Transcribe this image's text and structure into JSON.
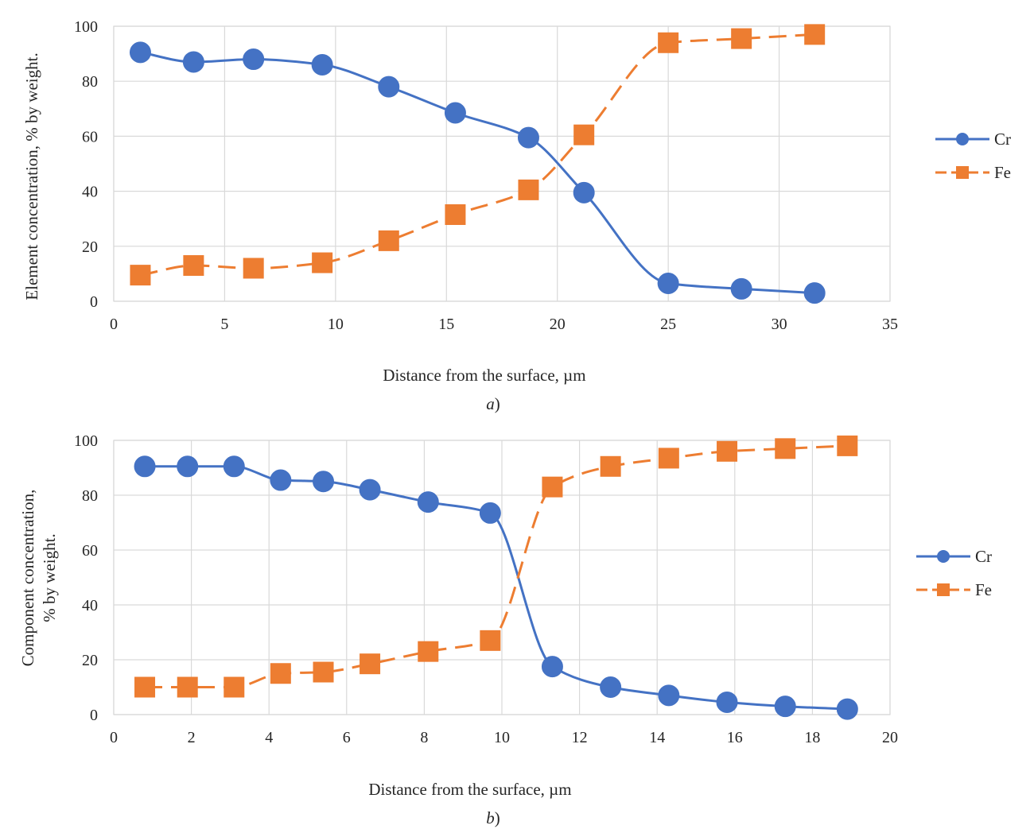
{
  "chart_data": [
    {
      "type": "line",
      "xlabel": "Distance from the surface, µm",
      "ylabel": "Element concentration, % by weight.",
      "caption_letter": "a",
      "caption_suffix": ")",
      "xlim": [
        0,
        35
      ],
      "ylim": [
        0,
        100
      ],
      "xticks": [
        0,
        5,
        10,
        15,
        20,
        25,
        30,
        35
      ],
      "yticks": [
        0,
        20,
        40,
        60,
        80,
        100
      ],
      "grid": true,
      "legend_position": "right",
      "series": [
        {
          "name": "Cr",
          "color": "#4472c4",
          "line_style": "solid",
          "marker": "circle",
          "x": [
            1.2,
            3.6,
            6.3,
            9.4,
            12.4,
            15.4,
            18.7,
            21.2,
            25.0,
            28.3,
            31.6
          ],
          "y": [
            90.5,
            87,
            88,
            86,
            78,
            68.5,
            59.5,
            39.5,
            6.5,
            4.5,
            3
          ]
        },
        {
          "name": "Fe",
          "color": "#ed7d31",
          "line_style": "dashed",
          "marker": "square",
          "x": [
            1.2,
            3.6,
            6.3,
            9.4,
            12.4,
            15.4,
            18.7,
            21.2,
            25.0,
            28.3,
            31.6
          ],
          "y": [
            9.5,
            13,
            12,
            14,
            22,
            31.5,
            40.5,
            60.5,
            94,
            95.5,
            97
          ]
        }
      ]
    },
    {
      "type": "line",
      "xlabel": "Distance from the surface, µm",
      "ylabel_lines": [
        "Component concentration,",
        "% by weight."
      ],
      "caption_letter": "b",
      "caption_suffix": ")",
      "xlim": [
        0,
        20
      ],
      "ylim": [
        0,
        100
      ],
      "xticks": [
        0,
        2,
        4,
        6,
        8,
        10,
        12,
        14,
        16,
        18,
        20
      ],
      "yticks": [
        0,
        20,
        40,
        60,
        80,
        100
      ],
      "grid": true,
      "legend_position": "right",
      "series": [
        {
          "name": "Cr",
          "color": "#4472c4",
          "line_style": "solid",
          "marker": "circle",
          "x": [
            0.8,
            1.9,
            3.1,
            4.3,
            5.4,
            6.6,
            8.1,
            9.7,
            11.3,
            12.8,
            14.3,
            15.8,
            17.3,
            18.9
          ],
          "y": [
            90.5,
            90.5,
            90.5,
            85.5,
            85,
            82,
            77.5,
            73.5,
            17.5,
            10,
            7,
            4.5,
            3,
            2
          ]
        },
        {
          "name": "Fe",
          "color": "#ed7d31",
          "line_style": "dashed",
          "marker": "square",
          "x": [
            0.8,
            1.9,
            3.1,
            4.3,
            5.4,
            6.6,
            8.1,
            9.7,
            11.3,
            12.8,
            14.3,
            15.8,
            17.3,
            18.9
          ],
          "y": [
            10,
            10,
            10,
            15,
            15.5,
            18.5,
            23,
            27,
            83,
            90.5,
            93.5,
            96,
            97,
            98
          ]
        }
      ]
    }
  ]
}
